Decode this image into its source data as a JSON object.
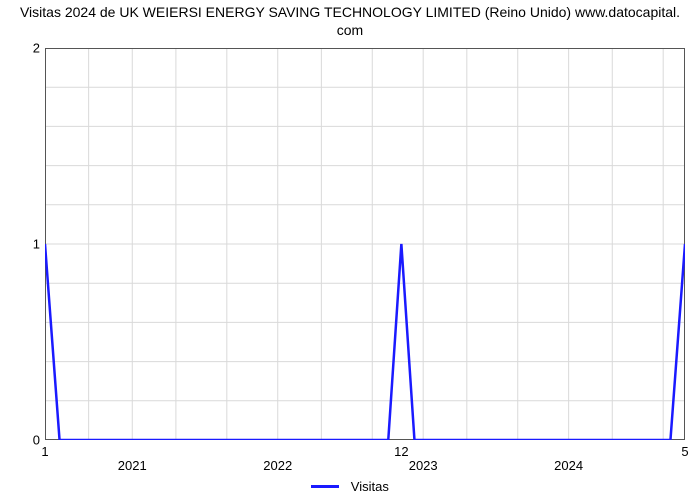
{
  "chart": {
    "type": "line",
    "title_line1": "Visitas 2024 de UK WEIERSI ENERGY SAVING TECHNOLOGY LIMITED (Reino Unido) www.datocapital.",
    "title_line2": "com",
    "title_fontsize": 14,
    "title_color": "#000000",
    "background_color": "#ffffff",
    "line_color": "#1a1aff",
    "line_width": 2.5,
    "grid_color": "#d9d9d9",
    "axis_color": "#555555",
    "tick_color": "#888888",
    "ytick_fontsize": 13,
    "xtick_fontsize": 13,
    "ylim": [
      0,
      2
    ],
    "yticks": [
      0,
      1,
      2
    ],
    "minor_yticks": [
      0.2,
      0.4,
      0.6,
      0.8,
      1.2,
      1.4,
      1.6,
      1.8
    ],
    "x_start": 2020.4,
    "x_end": 2024.8,
    "year_labels": [
      {
        "value": 2021,
        "label": "2021"
      },
      {
        "value": 2022,
        "label": "2022"
      },
      {
        "value": 2023,
        "label": "2023"
      },
      {
        "value": 2024,
        "label": "2024"
      }
    ],
    "spike_labels": [
      {
        "value": 2020.4,
        "label": "1"
      },
      {
        "value": 2022.85,
        "label": "12"
      },
      {
        "value": 2024.8,
        "label": "5"
      }
    ],
    "series": {
      "name": "Visitas",
      "points": [
        {
          "x": 2020.4,
          "y": 1.0
        },
        {
          "x": 2020.5,
          "y": 0.0
        },
        {
          "x": 2022.76,
          "y": 0.0
        },
        {
          "x": 2022.85,
          "y": 1.0
        },
        {
          "x": 2022.94,
          "y": 0.0
        },
        {
          "x": 2024.7,
          "y": 0.0
        },
        {
          "x": 2024.8,
          "y": 1.0
        }
      ]
    },
    "legend": {
      "label": "Visitas",
      "swatch_color": "#1a1aff"
    }
  }
}
